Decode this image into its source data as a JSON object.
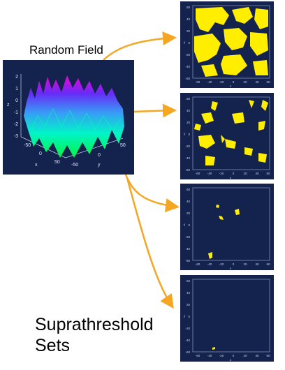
{
  "title_random_field": "Random Field",
  "title_suprathreshold": "Suprathreshold Sets",
  "colors": {
    "panel_bg": "#14234e",
    "blob": "#ffee00",
    "arrow": "#f5a623"
  },
  "surface_plot": {
    "z_ticks": [
      "2",
      "1",
      "0",
      "-1",
      "-2",
      "-3"
    ],
    "z_label": "z",
    "x_ticks": [
      "-50",
      "0",
      "50"
    ],
    "x_label": "x",
    "y_ticks": [
      "-50",
      "0",
      "50"
    ],
    "y_label": "y"
  },
  "threshold_axis": {
    "x_ticks": [
      "-60",
      "-40",
      "-20",
      "0",
      "20",
      "40",
      "60"
    ],
    "y_ticks": [
      "60",
      "40",
      "20",
      "0",
      "-20",
      "-40",
      "-60"
    ],
    "x_label": "x",
    "y_label": "y"
  },
  "threshold_panels": [
    {
      "name": "threshold-panel-1",
      "coverage": "large"
    },
    {
      "name": "threshold-panel-2",
      "coverage": "medium"
    },
    {
      "name": "threshold-panel-3",
      "coverage": "small"
    },
    {
      "name": "threshold-panel-4",
      "coverage": "tiny"
    }
  ]
}
